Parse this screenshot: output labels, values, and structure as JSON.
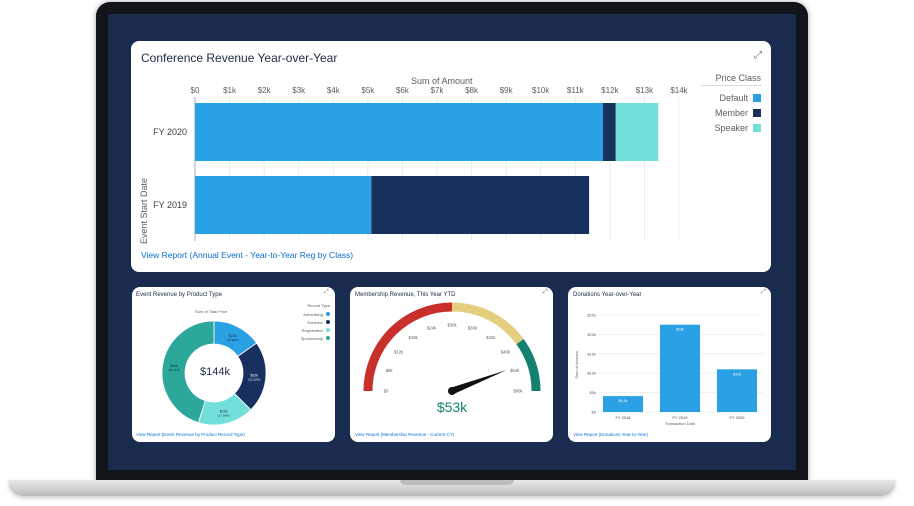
{
  "top_chart": {
    "title": "Conference Revenue Year-over-Year",
    "axis_title": "Sum of Amount",
    "y_axis_title": "Event Start Date",
    "x_ticks": [
      "$0",
      "$1k",
      "$2k",
      "$3k",
      "$4k",
      "$5k",
      "$6k",
      "$7k",
      "$8k",
      "$9k",
      "$10k",
      "$11k",
      "$12k",
      "$13k",
      "$14k"
    ],
    "legend_title": "Price Class",
    "legend": [
      {
        "name": "Default",
        "color": "#2aa1e4"
      },
      {
        "name": "Member",
        "color": "#17305e"
      },
      {
        "name": "Speaker",
        "color": "#72e0d9"
      }
    ],
    "link": "View Report (Annual Event - Year-to-Year Reg by Class)",
    "expand_icon": "expand-icon"
  },
  "donut": {
    "title": "Event Revenue by Product Type",
    "subtitle": "Sum of Total Price",
    "center": "$144k",
    "legend_title": "Record Type",
    "legend": [
      {
        "name": "Advertising",
        "color": "#2aa1e4"
      },
      {
        "name": "Exhibitor",
        "color": "#17305e"
      },
      {
        "name": "Registration",
        "color": "#72e0d9"
      },
      {
        "name": "Sponsorship",
        "color": "#2ca89a"
      }
    ],
    "link": "View Report (Event Revenue by Product Record Type)"
  },
  "gauge": {
    "title": "Membership Revenue, This Year YTD",
    "value": "$53k",
    "ticks": [
      "$0",
      "$6k",
      "$12k",
      "$18k",
      "$24k",
      "$30k",
      "$36k",
      "$42k",
      "$48k",
      "$54k",
      "$60k"
    ],
    "colors": {
      "low": "#c9302c",
      "mid": "#e4cf7e",
      "high": "#14806f"
    },
    "link": "View Report (Membership Revenue - Current CY)"
  },
  "donations": {
    "title": "Donations Year-over-Year",
    "y_title": "Sum of Amount",
    "x_title": "Transaction Date",
    "y_ticks": [
      "$0",
      "$5k",
      "$10k",
      "$15k",
      "$20k",
      "$25k"
    ],
    "link": "View Report (Donations Year-to-Year)"
  },
  "chart_data": [
    {
      "type": "bar",
      "title": "Conference Revenue Year-over-Year",
      "xlabel": "Sum of Amount",
      "ylabel": "Event Start Date",
      "categories": [
        "FY 2020",
        "FY 2019"
      ],
      "series": [
        {
          "name": "Default",
          "values": [
            11800,
            5100
          ]
        },
        {
          "name": "Member",
          "values": [
            370,
            6300
          ]
        },
        {
          "name": "Speaker",
          "values": [
            1230,
            0
          ]
        }
      ],
      "xlim": [
        0,
        14000
      ],
      "stacked": true,
      "legend_position": "right"
    },
    {
      "type": "pie",
      "title": "Event Revenue by Product Type",
      "center_label": "$144k",
      "slices": [
        {
          "name": "Advertising",
          "value": 22,
          "label": "$22k",
          "pct": "(15.28%)"
        },
        {
          "name": "Exhibitor",
          "value": 32,
          "label": "$32k",
          "pct": "(22.22%)"
        },
        {
          "name": "Registration",
          "value": 25,
          "label": "$25k",
          "pct": "(17.36%)"
        },
        {
          "name": "Sponsorship",
          "value": 65,
          "label": "$65k",
          "pct": "(45.14%)"
        }
      ],
      "legend_position": "top-right"
    },
    {
      "type": "gauge",
      "title": "Membership Revenue, This Year YTD",
      "value": 53000,
      "range": [
        0,
        60000
      ]
    },
    {
      "type": "bar",
      "title": "Donations Year-over-Year",
      "xlabel": "Transaction Date",
      "ylabel": "Sum of Amount",
      "categories": [
        "FY 2018",
        "FY 2019",
        "FY 2020"
      ],
      "values": [
        4.1,
        22.5,
        11.0
      ],
      "value_labels": [
        "$4.1k",
        "$23k",
        "$11k"
      ],
      "ylim": [
        0,
        25
      ]
    }
  ]
}
